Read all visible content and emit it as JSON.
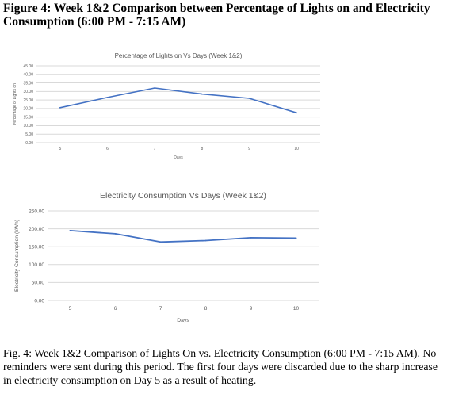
{
  "figure": {
    "title": "Figure 4: Week 1&2 Comparison between Percentage of Lights on and Electricity Consumption (6:00 PM - 7:15 AM)",
    "caption": "Fig. 4: Week 1&2 Comparison of Lights On vs. Electricity Consumption (6:00 PM - 7:15 AM). No reminders were sent during this period. The first four days were discarded due to the sharp increase in electricity consumption on Day 5 as a result of heating."
  },
  "colors": {
    "line": "#4472c4",
    "grid": "#d9d9d9",
    "text": "#595959"
  },
  "chart_data": [
    {
      "type": "line",
      "title": "Percentage of Lights on Vs Days (Week 1&2)",
      "xlabel": "Days",
      "ylabel": "Percentage of Lights on",
      "categories": [
        "5",
        "6",
        "7",
        "8",
        "9",
        "10"
      ],
      "series": [
        {
          "values": [
            20.5,
            26.5,
            32.0,
            28.5,
            26.0,
            17.5
          ]
        }
      ],
      "ylim": [
        0,
        45
      ],
      "yticks": [
        "0.00",
        "5.00",
        "10.00",
        "15.00",
        "20.00",
        "25.00",
        "30.00",
        "35.00",
        "40.00",
        "45.00"
      ],
      "grid": true,
      "legend": "none"
    },
    {
      "type": "line",
      "title": "Electricity Consumption Vs Days (Week 1&2)",
      "xlabel": "Days",
      "ylabel": "Electricity Consumption (kWh)",
      "categories": [
        "5",
        "6",
        "7",
        "8",
        "9",
        "10"
      ],
      "series": [
        {
          "values": [
            195,
            186,
            163,
            167,
            175,
            174
          ]
        }
      ],
      "ylim": [
        0,
        250
      ],
      "yticks": [
        "0.00",
        "50.00",
        "100.00",
        "150.00",
        "200.00",
        "250.00"
      ],
      "grid": true,
      "legend": "none"
    }
  ]
}
